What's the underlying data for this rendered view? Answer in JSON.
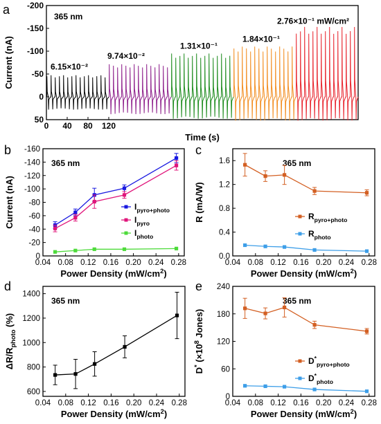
{
  "chart_data": [
    {
      "panel": "a",
      "type": "line",
      "annotation": "365 nm",
      "xlabel": "Time (s)",
      "ylabel": "Current (nA)",
      "xticks": [
        "0",
        "40",
        "80",
        "120"
      ],
      "yticks": [
        "-200",
        "-150",
        "-100",
        "-50",
        "0",
        "50"
      ],
      "xlim": [
        0,
        600
      ],
      "ylim": [
        50,
        -200
      ],
      "segments": [
        {
          "label": "6.15×10⁻²",
          "color": "#000000",
          "x_start": 0,
          "x_end": 120,
          "pulses": 15,
          "peak": -45,
          "trough": 28
        },
        {
          "label": "9.74×10⁻²",
          "color": "#8b1a89",
          "x_start": 120,
          "x_end": 240,
          "pulses": 15,
          "peak": -68,
          "trough": 38
        },
        {
          "label": "1.31×10⁻¹",
          "color": "#1a8a1a",
          "x_start": 240,
          "x_end": 360,
          "pulses": 15,
          "peak": -90,
          "trough": 48
        },
        {
          "label": "1.84×10⁻¹",
          "color": "#f28c1e",
          "x_start": 360,
          "x_end": 480,
          "pulses": 15,
          "peak": -105,
          "trough": 52
        },
        {
          "label": "2.76×10⁻¹ mW/cm²",
          "color": "#e8212a",
          "x_start": 480,
          "x_end": 600,
          "pulses": 15,
          "peak": -145,
          "trough": 52
        }
      ]
    },
    {
      "panel": "b",
      "type": "line",
      "annotation": "365 nm",
      "xlabel": "Power Density (mW/cm²)",
      "ylabel": "Current (nA)",
      "xticks": [
        "0.04",
        "0.08",
        "0.12",
        "0.16",
        "0.20",
        "0.24",
        "0.28"
      ],
      "yticks": [
        "-160",
        "-140",
        "-120",
        "-100",
        "-80",
        "-60",
        "-40",
        "-20",
        "0"
      ],
      "xlim": [
        0.04,
        0.29
      ],
      "ylim": [
        0,
        -160
      ],
      "x": [
        0.0615,
        0.0974,
        0.131,
        0.184,
        0.276
      ],
      "series": [
        {
          "name": "I_pyro+photo",
          "color": "#1818e0",
          "values": [
            -46,
            -65,
            -91,
            -101,
            -146
          ],
          "err": [
            5,
            5,
            10,
            5,
            7
          ]
        },
        {
          "name": "I_pyro",
          "color": "#e0157a",
          "values": [
            -41,
            -57,
            -81,
            -91,
            -135
          ],
          "err": [
            5,
            5,
            10,
            5,
            7
          ]
        },
        {
          "name": "I_photo",
          "color": "#4ddb3a",
          "values": [
            -6,
            -8,
            -10,
            -10,
            -11
          ],
          "err": [
            0,
            0,
            0,
            0,
            0
          ]
        }
      ],
      "legend": "center-right"
    },
    {
      "panel": "c",
      "type": "line",
      "annotation": "365 nm",
      "xlabel": "Power Density (mW/cm²)",
      "ylabel": "R (mA/W)",
      "xticks": [
        "0.04",
        "0.08",
        "0.12",
        "0.16",
        "0.20",
        "0.24",
        "0.28"
      ],
      "yticks": [
        "0.0",
        "0.4",
        "0.8",
        "1.2",
        "1.6"
      ],
      "xlim": [
        0.04,
        0.29
      ],
      "ylim": [
        0,
        1.8
      ],
      "x": [
        0.0615,
        0.0974,
        0.131,
        0.184,
        0.276
      ],
      "series": [
        {
          "name": "R_pyro+photo",
          "color": "#d35f22",
          "values": [
            1.53,
            1.34,
            1.36,
            1.09,
            1.06
          ],
          "err": [
            0.19,
            0.09,
            0.16,
            0.06,
            0.05
          ]
        },
        {
          "name": "R_photo",
          "color": "#3d9ee8",
          "values": [
            0.18,
            0.16,
            0.15,
            0.1,
            0.08
          ],
          "err": [
            0,
            0,
            0,
            0,
            0
          ]
        }
      ],
      "legend": "center-right"
    },
    {
      "panel": "d",
      "type": "line",
      "annotation": "365 nm",
      "xlabel": "Power Density (mW/cm²)",
      "ylabel": "ΔR/R_photo (%)",
      "xticks": [
        "0.04",
        "0.08",
        "0.12",
        "0.16",
        "0.20",
        "0.24",
        "0.28"
      ],
      "yticks": [
        "600",
        "800",
        "1000",
        "1200",
        "1400"
      ],
      "xlim": [
        0.04,
        0.29
      ],
      "ylim": [
        560,
        1460
      ],
      "x": [
        0.0615,
        0.0974,
        0.131,
        0.184,
        0.276
      ],
      "series": [
        {
          "name": "",
          "color": "#000000",
          "values": [
            735,
            743,
            825,
            965,
            1222
          ],
          "err": [
            80,
            120,
            100,
            90,
            190
          ]
        }
      ]
    },
    {
      "panel": "e",
      "type": "line",
      "annotation": "365 nm",
      "xlabel": "Power Density (mW/cm²)",
      "ylabel": "D* (×10⁸ Jones)",
      "xticks": [
        "0.04",
        "0.08",
        "0.12",
        "0.16",
        "0.20",
        "0.24",
        "0.28"
      ],
      "yticks": [
        "0",
        "60",
        "120",
        "180",
        "240"
      ],
      "xlim": [
        0.04,
        0.29
      ],
      "ylim": [
        0,
        240
      ],
      "x": [
        0.0615,
        0.0974,
        0.131,
        0.184,
        0.276
      ],
      "series": [
        {
          "name": "D*_pyro+photo",
          "color": "#d35f22",
          "values": [
            192,
            181,
            194,
            156,
            142
          ],
          "err": [
            22,
            12,
            21,
            8,
            6
          ]
        },
        {
          "name": "D*_photo",
          "color": "#3d9ee8",
          "values": [
            23,
            22,
            21,
            15,
            11
          ],
          "err": [
            0,
            0,
            0,
            0,
            0
          ]
        }
      ],
      "legend": "center-right"
    }
  ],
  "legend_text": {
    "b": [
      {
        "main": "I",
        "sub": "pyro+photo"
      },
      {
        "main": "I",
        "sub": "pyro"
      },
      {
        "main": "I",
        "sub": "photo"
      }
    ],
    "c": [
      {
        "main": "R",
        "sub": "pyro+photo"
      },
      {
        "main": "R",
        "sub": "photo"
      }
    ],
    "e": [
      {
        "main": "D",
        "sup": "*",
        "sub": "pyro+photo"
      },
      {
        "main": "D",
        "sup": "*",
        "sub": "photo"
      }
    ]
  },
  "ylabel_parts": {
    "d": {
      "main": "ΔR/R",
      "sub": "photo",
      "rest": " (%)"
    },
    "e": {
      "main": "D",
      "sup": "*",
      "rest": " (×10",
      "sup2": "8",
      "rest2": " Jones)"
    }
  }
}
